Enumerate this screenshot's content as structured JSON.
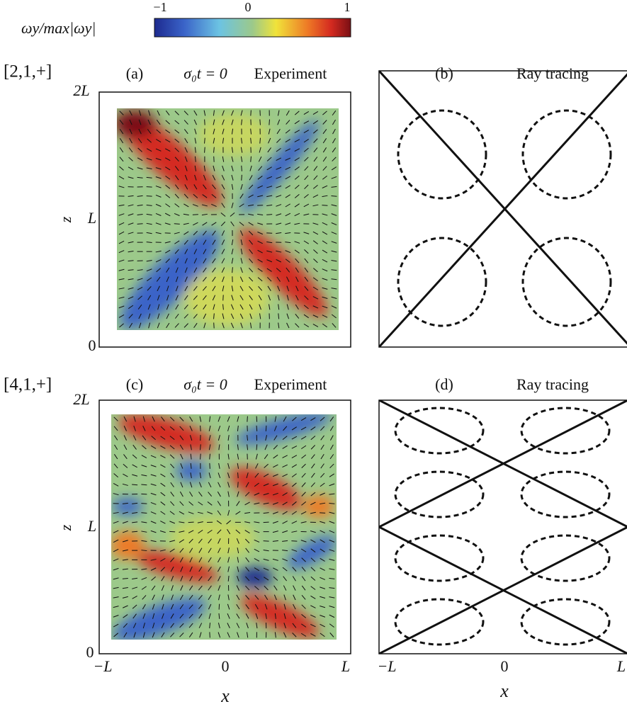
{
  "colorbar": {
    "label": "ωy/max|ωy|",
    "ticks": [
      "−1",
      "0",
      "1"
    ]
  },
  "rows": [
    {
      "mode": "[2,1,+]",
      "yticks": [
        "2L",
        "L",
        "0"
      ],
      "ylabel": "z",
      "panels": [
        {
          "label": "(a)",
          "time": "σ₀t = 0",
          "title": "Experiment"
        },
        {
          "label": "(b)",
          "title": "Ray tracing"
        }
      ]
    },
    {
      "mode": "[4,1,+]",
      "yticks": [
        "2L",
        "L",
        "0"
      ],
      "ylabel": "z",
      "panels": [
        {
          "label": "(c)",
          "time": "σ₀t = 0",
          "title": "Experiment"
        },
        {
          "label": "(d)",
          "title": "Ray tracing"
        }
      ]
    }
  ],
  "columns": [
    {
      "xticks": [
        "−L",
        "0",
        "L"
      ],
      "xlabel": "x"
    },
    {
      "xticks": [
        "−L",
        "0",
        "L"
      ],
      "xlabel": "x"
    }
  ]
}
